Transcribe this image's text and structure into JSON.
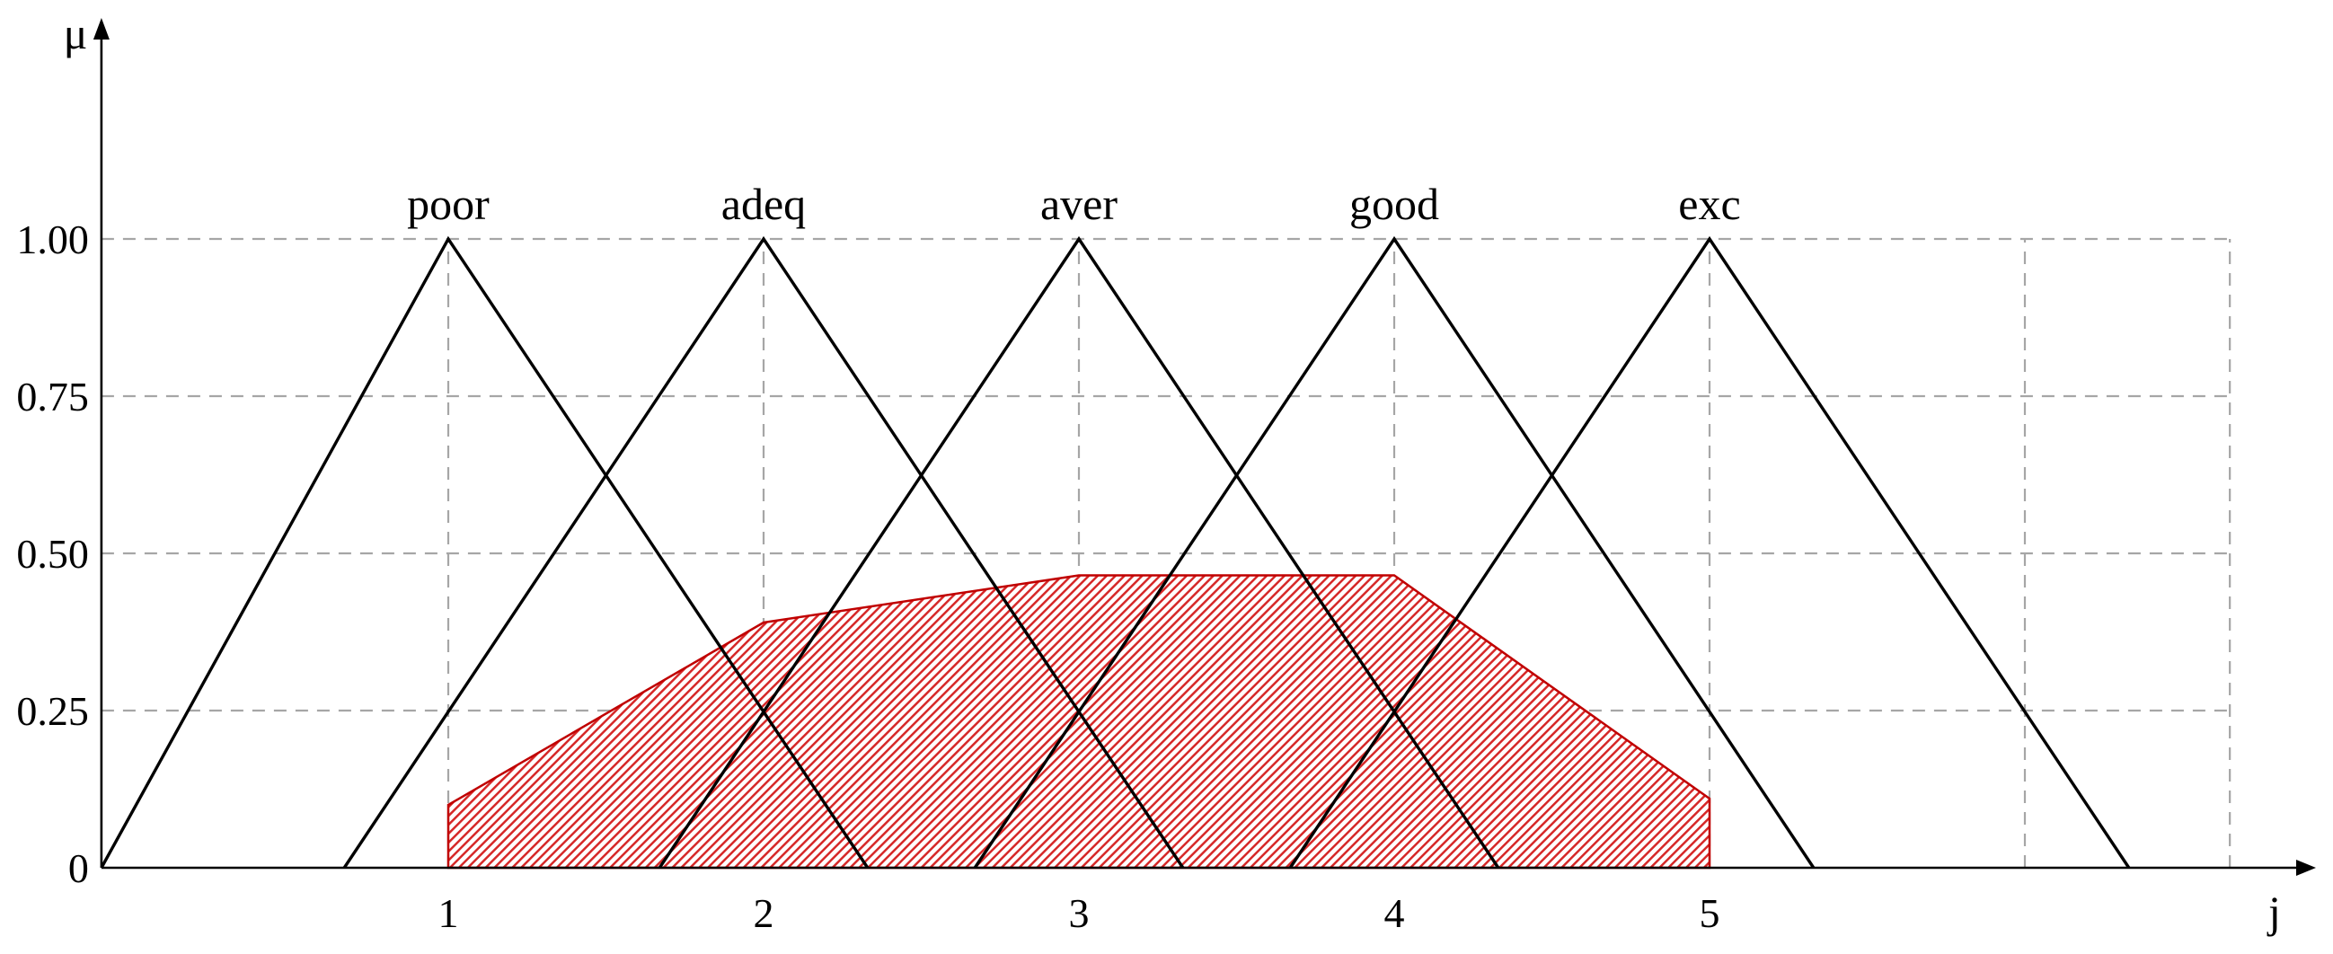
{
  "chart_data": {
    "type": "area",
    "xlabel": "j",
    "ylabel": "μ",
    "xlim": [
      -0.1,
      6.65
    ],
    "ylim": [
      0,
      1.3
    ],
    "grid": true,
    "x_ticks": [
      {
        "value": 1,
        "label": "1"
      },
      {
        "value": 2,
        "label": "2"
      },
      {
        "value": 3,
        "label": "3"
      },
      {
        "value": 4,
        "label": "4"
      },
      {
        "value": 5,
        "label": "5"
      },
      {
        "value": 6,
        "label": ""
      },
      {
        "value": 6.65,
        "label": ""
      }
    ],
    "y_ticks": [
      {
        "value": 0,
        "label": "0"
      },
      {
        "value": 0.25,
        "label": "0.25"
      },
      {
        "value": 0.5,
        "label": "0.50"
      },
      {
        "value": 0.75,
        "label": "0.75"
      },
      {
        "value": 1.0,
        "label": "1.00"
      }
    ],
    "fuzzy_sets": [
      {
        "name": "poor",
        "points": [
          [
            -0.1,
            0
          ],
          [
            1,
            1
          ],
          [
            2.33,
            0
          ]
        ]
      },
      {
        "name": "adeq",
        "points": [
          [
            0.67,
            0
          ],
          [
            2,
            1
          ],
          [
            3.33,
            0
          ]
        ]
      },
      {
        "name": "aver",
        "points": [
          [
            1.67,
            0
          ],
          [
            3,
            1
          ],
          [
            4.33,
            0
          ]
        ]
      },
      {
        "name": "good",
        "points": [
          [
            2.67,
            0
          ],
          [
            4,
            1
          ],
          [
            5.33,
            0
          ]
        ]
      },
      {
        "name": "exc",
        "points": [
          [
            3.67,
            0
          ],
          [
            5,
            1
          ],
          [
            6.33,
            0
          ]
        ]
      }
    ],
    "aggregated_output": {
      "color": "#e03030",
      "points": [
        [
          1,
          0
        ],
        [
          1,
          0.1
        ],
        [
          2,
          0.39
        ],
        [
          3,
          0.465
        ],
        [
          4,
          0.465
        ],
        [
          5,
          0.11
        ],
        [
          5,
          0
        ]
      ]
    }
  }
}
